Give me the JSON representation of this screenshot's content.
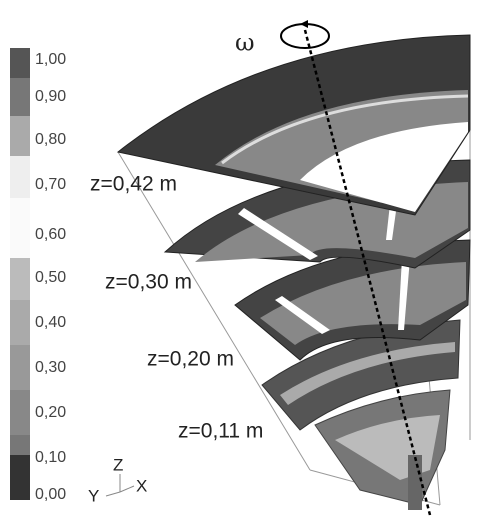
{
  "colorbar": {
    "labels": [
      "1,00",
      "0,90",
      "0,80",
      "0,70",
      "0,60",
      "0,50",
      "0,40",
      "0,30",
      "0,20",
      "0,10",
      "0,00"
    ]
  },
  "slices": {
    "labels": [
      "z=0,42 m",
      "z=0,30 m",
      "z=0,20 m",
      "z=0,11 m"
    ]
  },
  "rotation": {
    "symbol": "ω"
  },
  "axes": {
    "z": "Z",
    "x": "X",
    "y": "Y"
  }
}
